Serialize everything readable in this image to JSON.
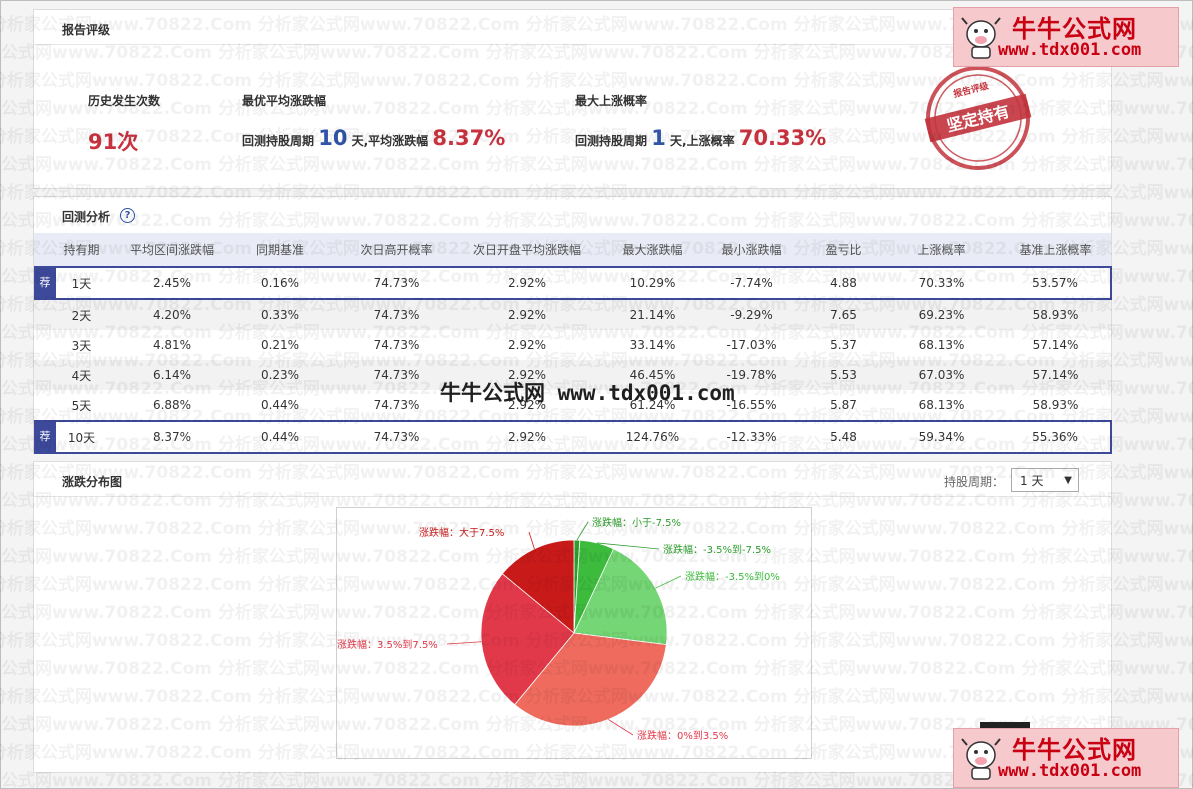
{
  "report_rating": {
    "title": "报告评级",
    "history_count_label": "历史发生次数",
    "history_count_value": "91次",
    "best_avg_label": "最优平均涨跌幅",
    "best_avg_prefix": "回测持股周期",
    "best_avg_days": "10",
    "best_avg_mid": "天,平均涨跌幅",
    "best_avg_value": "8.37%",
    "max_up_label": "最大上涨概率",
    "max_up_prefix": "回测持股周期",
    "max_up_days": "1",
    "max_up_mid": "天,上涨概率",
    "max_up_value": "70.33%",
    "stamp_top": "报告评级",
    "stamp_main": "坚定持有"
  },
  "backtest": {
    "title": "回测分析",
    "help_icon": "?",
    "rec_tag": "荐",
    "columns": [
      "持有期",
      "平均区间涨跌幅",
      "同期基准",
      "次日高开概率",
      "次日开盘平均涨跌幅",
      "最大涨跌幅",
      "最小涨跌幅",
      "盈亏比",
      "上涨概率",
      "基准上涨概率"
    ],
    "rows": [
      {
        "period": "1天",
        "avg": "2.45%",
        "bench": "0.16%",
        "gap_up": "74.73%",
        "open_avg": "2.92%",
        "max": "10.29%",
        "min": "-7.74%",
        "pl": "4.88",
        "up": "70.33%",
        "bench_up": "53.57%"
      },
      {
        "period": "2天",
        "avg": "4.20%",
        "bench": "0.33%",
        "gap_up": "74.73%",
        "open_avg": "2.92%",
        "max": "21.14%",
        "min": "-9.29%",
        "pl": "7.65",
        "up": "69.23%",
        "bench_up": "58.93%"
      },
      {
        "period": "3天",
        "avg": "4.81%",
        "bench": "0.21%",
        "gap_up": "74.73%",
        "open_avg": "2.92%",
        "max": "33.14%",
        "min": "-17.03%",
        "pl": "5.37",
        "up": "68.13%",
        "bench_up": "57.14%"
      },
      {
        "period": "4天",
        "avg": "6.14%",
        "bench": "0.23%",
        "gap_up": "74.73%",
        "open_avg": "2.92%",
        "max": "46.45%",
        "min": "-19.78%",
        "pl": "5.53",
        "up": "67.03%",
        "bench_up": "57.14%"
      },
      {
        "period": "5天",
        "avg": "6.88%",
        "bench": "0.44%",
        "gap_up": "74.73%",
        "open_avg": "2.92%",
        "max": "61.24%",
        "min": "-16.55%",
        "pl": "5.87",
        "up": "68.13%",
        "bench_up": "58.93%"
      },
      {
        "period": "10天",
        "avg": "8.37%",
        "bench": "0.44%",
        "gap_up": "74.73%",
        "open_avg": "2.92%",
        "max": "124.76%",
        "min": "-12.33%",
        "pl": "5.48",
        "up": "59.34%",
        "bench_up": "55.36%"
      }
    ],
    "recommended_rows": [
      0,
      5
    ]
  },
  "distribution": {
    "title": "涨跌分布图",
    "period_label": "持股周期：",
    "period_value": "1 天",
    "period_arrow": "▼"
  },
  "chart_data": {
    "type": "pie",
    "slices": [
      {
        "label": "涨跌幅：小于-7.5%",
        "value": 1,
        "color": "#2e9e2e"
      },
      {
        "label": "涨跌幅：-3.5%到-7.5%",
        "value": 6,
        "color": "#3dbb3d"
      },
      {
        "label": "涨跌幅：-3.5%到0%",
        "value": 20,
        "color": "#74d674"
      },
      {
        "label": "涨跌幅：0%到3.5%",
        "value": 34,
        "color": "#ef6b5e"
      },
      {
        "label": "涨跌幅：3.5%到7.5%",
        "value": 25,
        "color": "#e2394a"
      },
      {
        "label": "涨跌幅：大于7.5%",
        "value": 14,
        "color": "#c91a1a"
      }
    ]
  },
  "watermarks": {
    "center_text": "牛牛公式网  www.tdx001.com",
    "logo_line1": "牛牛公式网",
    "logo_line2": "www.tdx001.com",
    "bg_text": "分析家公式网www.70822.Com"
  }
}
